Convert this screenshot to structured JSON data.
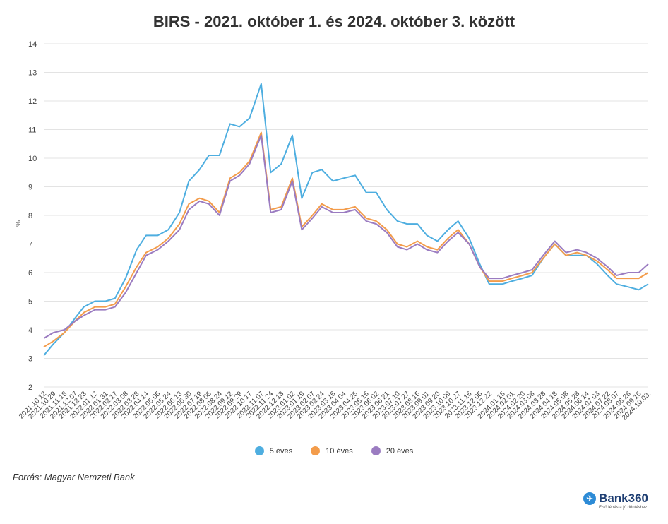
{
  "chart_data": {
    "type": "line",
    "title": "BIRS - 2021. október 1. és 2024. október 3. között",
    "ylabel": "%",
    "ylim": [
      2,
      14
    ],
    "yticks": [
      2,
      3,
      4,
      5,
      6,
      7,
      8,
      9,
      10,
      11,
      12,
      13,
      14
    ],
    "grid": true,
    "legend_position": "bottom-center",
    "x_dates": [
      "2021.10.12",
      "2021.10.29",
      "2021.11.18",
      "2021.12.07",
      "2021.12.23",
      "2022.01.12",
      "2022.01.31",
      "2022.02.17",
      "2022.03.08",
      "2022.03.28",
      "2022.04.14",
      "2022.05.05",
      "2022.05.24",
      "2022.06.13",
      "2022.06.30",
      "2022.07.19",
      "2022.08.05",
      "2022.08.24",
      "2022.09.12",
      "2022.09.29",
      "2022.10.17",
      "2022.11.07",
      "2022.11.24",
      "2022.12.13",
      "2023.01.02",
      "2023.01.19",
      "2023.02.07",
      "2023.02.24",
      "2023.03.16",
      "2023.04.04",
      "2023.04.25",
      "2023.05.15",
      "2023.06.02",
      "2023.06.21",
      "2023.07.10",
      "2023.07.27",
      "2023.08.15",
      "2023.09.01",
      "2023.09.20",
      "2023.10.09",
      "2023.10.27",
      "2023.11.16",
      "2023.12.05",
      "2023.12.22",
      "2024.01.15",
      "2024.02.01",
      "2024.02.20",
      "2024.03.08",
      "2024.03.28",
      "2024.04.18",
      "2024.05.08",
      "2024.05.28",
      "2024.06.14",
      "2024.07.03",
      "2024.07.22",
      "2024.08.07",
      "2024.08.28",
      "2024.09.16",
      "2024.10.03"
    ],
    "x_tick_labels": [
      "2021.10.12",
      "2021.10.29",
      "2021.11.18",
      "2021.12.07",
      "2021.12.23",
      "2022.01.12",
      "2022.01.31",
      "2022.02.17",
      "2022.03.08",
      "2022.03.28",
      "2022.04.14",
      "2022.05.05",
      "2022.05.24",
      "2022.06.13",
      "2022.06.30",
      "2022.07.19",
      "2022.08.05",
      "2022.08.24",
      "2022.09.12",
      "2022.09.29",
      "2022.10.17",
      "2022.11.07",
      "2022.11.24",
      "2022.12.13",
      "2023.01.02",
      "2023.01.19",
      "2023.02.07",
      "2023.02.24",
      "2023.03.16",
      "2023.04.04",
      "2023.04.25",
      "2023.05.15",
      "2023.06.02",
      "2023.06.21",
      "2023.07.10",
      "2023.07.27",
      "2023.08.15",
      "2023.09.01",
      "2023.09.20",
      "2023.10.09",
      "2023.10.27",
      "2023.11.16",
      "2023.12.05",
      "2023.12.22",
      "2024.01.15",
      "2024.02.01",
      "2024.02.20",
      "2024.03.08",
      "2024.03.28",
      "2024.04.18",
      "2024.05.08",
      "2024.05.28",
      "2024.06.14",
      "2024.07.03",
      "2024.07.22",
      "2024.08.07",
      "2024.08.28",
      "2024.09.16",
      "2024.10.03."
    ],
    "series": [
      {
        "name": "5 éves",
        "color": "#4eaee0",
        "values": [
          3.1,
          3.5,
          3.9,
          4.4,
          4.8,
          5.0,
          5.0,
          5.1,
          5.8,
          6.8,
          7.3,
          7.3,
          7.5,
          8.1,
          9.2,
          9.6,
          10.1,
          10.1,
          11.2,
          11.1,
          11.4,
          12.6,
          9.5,
          9.8,
          10.8,
          8.6,
          9.5,
          9.6,
          9.2,
          9.3,
          9.4,
          8.8,
          8.8,
          8.2,
          7.8,
          7.7,
          7.7,
          7.3,
          7.1,
          7.5,
          7.8,
          7.2,
          6.3,
          5.6,
          5.6,
          5.7,
          5.8,
          5.9,
          6.5,
          7.0,
          6.6,
          6.6,
          6.6,
          6.3,
          5.9,
          5.6,
          5.5,
          5.4,
          5.6
        ]
      },
      {
        "name": "10 éves",
        "color": "#f39c4b",
        "values": [
          3.4,
          3.6,
          3.9,
          4.3,
          4.6,
          4.8,
          4.8,
          4.9,
          5.5,
          6.2,
          6.7,
          6.9,
          7.2,
          7.7,
          8.4,
          8.6,
          8.5,
          8.1,
          9.3,
          9.5,
          9.9,
          10.9,
          8.2,
          8.3,
          9.3,
          7.6,
          8.0,
          8.4,
          8.2,
          8.2,
          8.3,
          7.9,
          7.8,
          7.5,
          7.0,
          6.9,
          7.1,
          6.9,
          6.8,
          7.2,
          7.5,
          7.0,
          6.2,
          5.7,
          5.7,
          5.8,
          5.9,
          6.0,
          6.5,
          7.0,
          6.6,
          6.7,
          6.6,
          6.4,
          6.1,
          5.8,
          5.8,
          5.8,
          6.0
        ]
      },
      {
        "name": "20 éves",
        "color": "#9b7cc1",
        "values": [
          3.7,
          3.9,
          4.0,
          4.3,
          4.5,
          4.7,
          4.7,
          4.8,
          5.3,
          6.0,
          6.6,
          6.8,
          7.1,
          7.5,
          8.2,
          8.5,
          8.4,
          8.0,
          9.2,
          9.4,
          9.8,
          10.8,
          8.1,
          8.2,
          9.2,
          7.5,
          7.9,
          8.3,
          8.1,
          8.1,
          8.2,
          7.8,
          7.7,
          7.4,
          6.9,
          6.8,
          7.0,
          6.8,
          6.7,
          7.1,
          7.4,
          7.0,
          6.2,
          5.8,
          5.8,
          5.9,
          6.0,
          6.1,
          6.6,
          7.1,
          6.7,
          6.8,
          6.7,
          6.5,
          6.2,
          5.9,
          6.0,
          6.0,
          6.3
        ]
      }
    ]
  },
  "source": "Forrás: Magyar Nemzeti Bank",
  "logo": {
    "name": "Bank360",
    "tagline": "Első lépés a jó döntéshez."
  }
}
